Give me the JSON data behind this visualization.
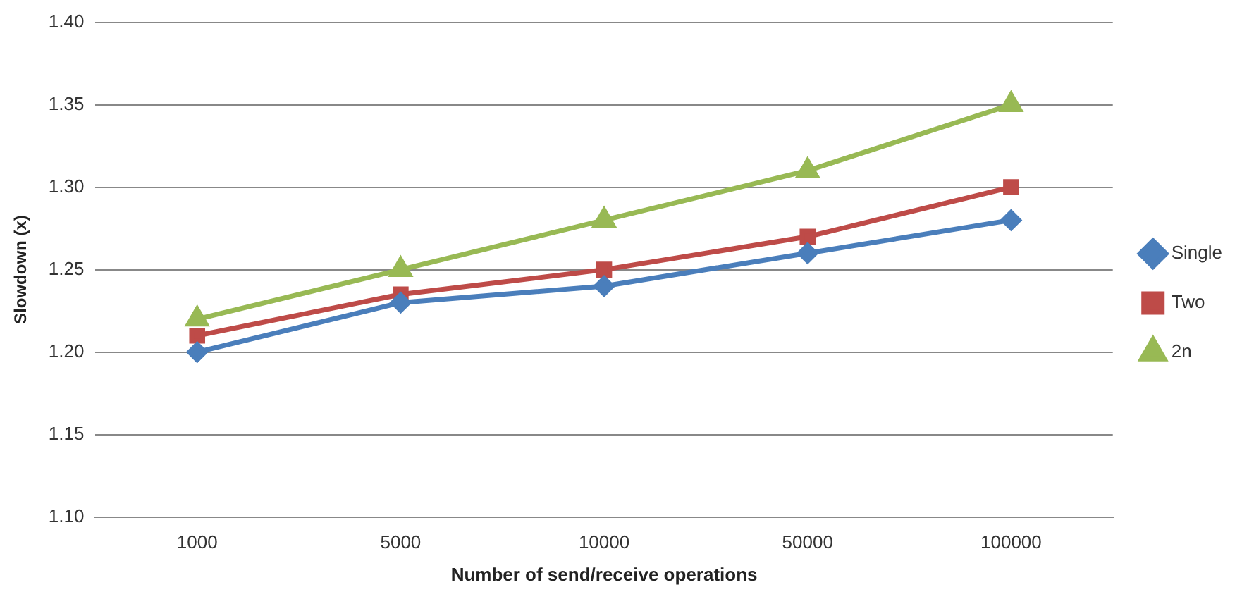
{
  "chart_data": {
    "type": "line",
    "xlabel": "Number of send/receive operations",
    "ylabel": "Slowdown (x)",
    "categories": [
      "1000",
      "5000",
      "10000",
      "50000",
      "100000"
    ],
    "series": [
      {
        "name": "Single",
        "color": "#4a7ebb",
        "values": [
          1.2,
          1.23,
          1.24,
          1.26,
          1.28
        ],
        "marker": "diamond"
      },
      {
        "name": "Two",
        "color": "#be4b48",
        "values": [
          1.21,
          1.235,
          1.25,
          1.27,
          1.3
        ],
        "marker": "square"
      },
      {
        "name": "2n",
        "color": "#98b954",
        "values": [
          1.22,
          1.25,
          1.28,
          1.31,
          1.35
        ],
        "marker": "triangle"
      }
    ],
    "ylim": [
      1.1,
      1.4
    ],
    "yticks": [
      {
        "value": 1.1,
        "label": "1.10"
      },
      1.15,
      {
        "value": 1.2,
        "label": "1.20"
      },
      1.25,
      {
        "value": 1.3,
        "label": "1.30"
      },
      1.35,
      {
        "value": 1.4,
        "label": "1.40"
      }
    ],
    "grid": "y",
    "legend": "right",
    "line_style": "solid"
  }
}
